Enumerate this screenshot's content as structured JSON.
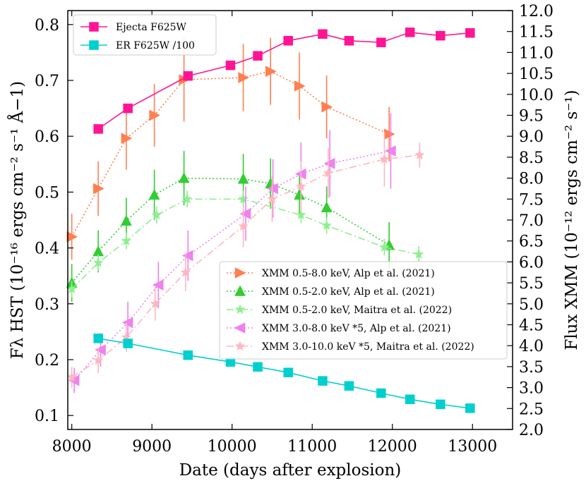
{
  "chart_data": {
    "type": "line",
    "xlabel": "Date (days after explosion)",
    "ylabel_left": "Fλ HST (10⁻¹⁶ ergs cm⁻² s⁻¹ Å−1)",
    "ylabel_right": "Flux XMM (10⁻¹² ergs cm⁻² s⁻¹)",
    "xlim": [
      7950,
      13500
    ],
    "ylim_left": [
      0.075,
      0.825
    ],
    "ylim_right": [
      2.0,
      12.0
    ],
    "xticks": [
      "8000",
      "9000",
      "10000",
      "11000",
      "12000",
      "13000"
    ],
    "yticks_left": [
      "0.1",
      "0.2",
      "0.3",
      "0.4",
      "0.5",
      "0.6",
      "0.7",
      "0.8"
    ],
    "yticks_right": [
      "2.0",
      "2.5",
      "3.0",
      "3.5",
      "4.0",
      "4.5",
      "5.0",
      "5.5",
      "6.0",
      "6.5",
      "7.0",
      "7.5",
      "8.0",
      "8.5",
      "9.0",
      "9.5",
      "10.0",
      "10.5",
      "11.0",
      "11.5",
      "12.0"
    ],
    "legend_left": {
      "placement": "top-left",
      "entries": [
        "Ejecta F625W",
        "ER F625W /100"
      ]
    },
    "legend_right": {
      "placement": "center-right",
      "entries": [
        "XMM 0.5-8.0 keV, Alp et al. (2021)",
        "XMM 0.5-2.0 keV, Alp et al. (2021)",
        "XMM 0.5-2.0 keV, Maitra et al. (2022)",
        "XMM 3.0-8.0 keV *5, Alp et al. (2021)",
        "XMM 3.0-10.0 keV *5, Maitra et al. (2022)"
      ]
    },
    "series": [
      {
        "name": "Ejecta F625W",
        "axis": "left",
        "color": "#ff1493",
        "marker": "square",
        "line": "solid",
        "x": [
          8330,
          8700,
          9450,
          9980,
          10320,
          10700,
          11130,
          11460,
          11860,
          12220,
          12600,
          12970
        ],
        "y": [
          0.613,
          0.65,
          0.708,
          0.727,
          0.744,
          0.771,
          0.783,
          0.771,
          0.768,
          0.786,
          0.78,
          0.785
        ]
      },
      {
        "name": "ER F625W /100",
        "axis": "left",
        "color": "#00cfcf",
        "marker": "square",
        "line": "solid",
        "x": [
          8330,
          8700,
          9450,
          9980,
          10320,
          10700,
          11130,
          11460,
          11860,
          12220,
          12600,
          12970
        ],
        "y": [
          0.238,
          0.229,
          0.208,
          0.196,
          0.187,
          0.177,
          0.162,
          0.153,
          0.14,
          0.129,
          0.12,
          0.113
        ]
      },
      {
        "name": "XMM 0.5-8.0 keV, Alp et al. (2021)",
        "axis": "right",
        "color": "#ff7f50",
        "marker": "triangle-right",
        "line": "dotted",
        "x": [
          8000,
          8330,
          8680,
          9030,
          9400,
          10140,
          10480,
          10840,
          11180,
          11960
        ],
        "y": [
          6.6,
          7.75,
          8.95,
          9.5,
          10.35,
          10.4,
          10.55,
          10.2,
          9.7,
          9.05
        ],
        "err": [
          0.55,
          0.65,
          0.75,
          0.75,
          1.0,
          0.8,
          0.8,
          0.8,
          0.75,
          0.65
        ]
      },
      {
        "name": "XMM 0.5-2.0 keV, Alp et al. (2021)",
        "axis": "right",
        "color": "#32cd32",
        "marker": "triangle-up",
        "line": "dotted",
        "x": [
          8000,
          8330,
          8680,
          9030,
          9400,
          10140,
          10480,
          10840,
          11180,
          11960
        ],
        "y": [
          5.5,
          6.25,
          6.98,
          7.6,
          8.0,
          7.98,
          7.87,
          7.6,
          7.3,
          6.4
        ],
        "err": [
          0.45,
          0.5,
          0.55,
          0.6,
          0.65,
          0.6,
          0.6,
          0.55,
          0.5,
          0.55
        ]
      },
      {
        "name": "XMM 0.5-2.0 keV, Maitra et al. (2022)",
        "axis": "right",
        "color": "#90ee90",
        "marker": "star",
        "line": "dashdot",
        "x": [
          8000,
          8330,
          8680,
          9060,
          9440,
          10140,
          10860,
          11180,
          11900,
          12330
        ],
        "y": [
          5.35,
          5.98,
          6.5,
          7.12,
          7.5,
          7.5,
          7.12,
          6.87,
          6.35,
          6.18
        ],
        "err": [
          0.2,
          0.2,
          0.2,
          0.2,
          0.2,
          0.2,
          0.2,
          0.2,
          0.2,
          0.2
        ]
      },
      {
        "name": "XMM 3.0-8.0 keV *5, Alp et al. (2021)",
        "axis": "right",
        "color": "#ee82ee",
        "marker": "triangle-left",
        "line": "dotted",
        "x": [
          8030,
          8360,
          8700,
          9080,
          9450,
          10170,
          10510,
          10860,
          11220,
          11980
        ],
        "y": [
          3.17,
          3.9,
          4.55,
          5.45,
          6.15,
          7.15,
          7.75,
          8.1,
          8.35,
          8.65
        ],
        "err": [
          0.3,
          0.4,
          0.5,
          0.55,
          0.6,
          0.65,
          0.7,
          0.75,
          0.8,
          0.9
        ]
      },
      {
        "name": "XMM 3.0-10.0 keV *5, Maitra et al. (2022)",
        "axis": "right",
        "color": "#ffb6c1",
        "marker": "star",
        "line": "dashdot",
        "x": [
          8000,
          8330,
          8680,
          9040,
          9420,
          10140,
          10500,
          10860,
          11200,
          11900,
          12340
        ],
        "y": [
          3.25,
          3.65,
          4.2,
          5.0,
          5.75,
          6.85,
          7.5,
          7.8,
          8.12,
          8.45,
          8.55
        ],
        "err": [
          0.25,
          0.3,
          0.35,
          0.4,
          0.45,
          0.5,
          0.55,
          0.6,
          0.6,
          0.65,
          0.3
        ]
      }
    ]
  }
}
